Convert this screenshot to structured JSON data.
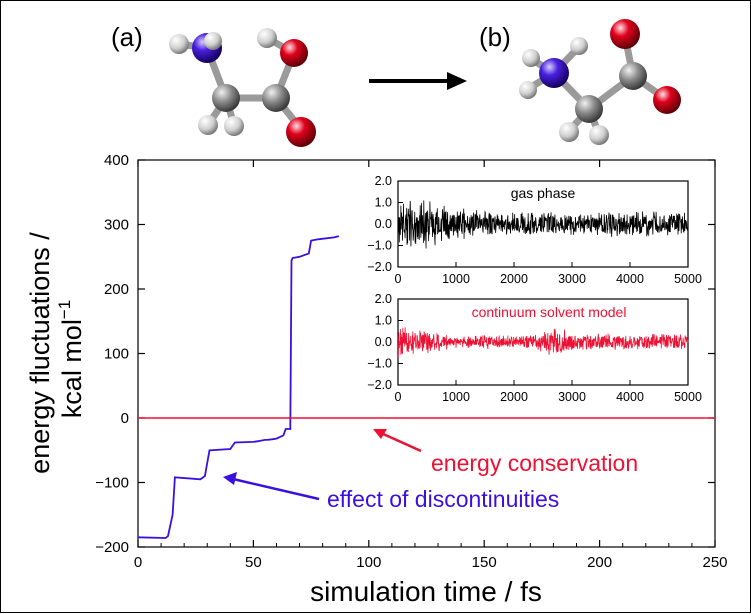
{
  "panel_labels": {
    "a": "(a)",
    "b": "(b)"
  },
  "colors": {
    "hydrogen": "#d8d8d8",
    "carbon": "#8a8a8a",
    "nitrogen": "#3a10c8",
    "oxygen": "#d0001c",
    "blue_series": "#3a10e0",
    "red_series": "#ee1133",
    "gas_series": "#000000",
    "continuum_series": "#ee1133"
  },
  "annotations": {
    "energy_conservation": "energy conservation",
    "effect_of_discontinuities": "effect of discontinuities"
  },
  "chart_data": [
    {
      "type": "line",
      "xlabel": "simulation time / fs",
      "ylabel_line1": "energy fluctuations /",
      "ylabel_line2": "kcal mol",
      "ylabel_superscript": "−1",
      "xlim": [
        0,
        250
      ],
      "ylim": [
        -200,
        400
      ],
      "xticks": [
        0,
        50,
        100,
        150,
        200,
        250
      ],
      "yticks": [
        -200,
        -100,
        0,
        100,
        200,
        300,
        400
      ],
      "grid": false,
      "series": [
        {
          "color": "#3a10e0",
          "x": [
            0,
            12,
            13,
            15,
            16,
            27,
            29,
            30,
            31,
            40,
            42,
            50,
            52,
            55,
            56,
            58,
            60,
            63,
            64,
            66,
            66.5,
            67,
            70,
            74,
            75,
            78,
            85,
            87
          ],
          "y": [
            -185,
            -186,
            -183,
            -150,
            -92,
            -95,
            -90,
            -70,
            -50,
            -48,
            -38,
            -37,
            -36,
            -34,
            -34,
            -33,
            -32,
            -27,
            -17,
            -17,
            244,
            248,
            250,
            255,
            275,
            277,
            280,
            282
          ]
        },
        {
          "color": "#ee1133",
          "x": [
            0,
            250
          ],
          "y": [
            0,
            0
          ]
        }
      ]
    },
    {
      "type": "line",
      "title": "gas phase",
      "xlim": [
        0,
        5000
      ],
      "ylim": [
        -2,
        2
      ],
      "xticks": [
        0,
        1000,
        2000,
        3000,
        4000,
        5000
      ],
      "yticks": [
        "2.0",
        "1.0",
        "0.0",
        "−1.0",
        "−2.0"
      ],
      "series": [
        {
          "color": "#000000",
          "x_range": [
            0,
            5000
          ],
          "approx_amplitude": [
            [
              0,
              1.3
            ],
            [
              500,
              1.2
            ],
            [
              1000,
              0.8
            ],
            [
              1500,
              0.6
            ],
            [
              2000,
              0.55
            ],
            [
              2500,
              0.6
            ],
            [
              3000,
              0.55
            ],
            [
              3500,
              0.6
            ],
            [
              4000,
              0.65
            ],
            [
              4500,
              0.6
            ],
            [
              5000,
              0.6
            ]
          ]
        }
      ]
    },
    {
      "type": "line",
      "title": "continuum solvent model",
      "xlim": [
        0,
        5000
      ],
      "ylim": [
        -2,
        2
      ],
      "xticks": [
        0,
        1000,
        2000,
        3000,
        4000,
        5000
      ],
      "yticks": [
        "2.0",
        "1.0",
        "0.0",
        "−1.0",
        "−2.0"
      ],
      "series": [
        {
          "color": "#ee1133",
          "x_range": [
            0,
            5000
          ],
          "approx_amplitude": [
            [
              0,
              0.8
            ],
            [
              500,
              0.6
            ],
            [
              1000,
              0.3
            ],
            [
              1500,
              0.35
            ],
            [
              2000,
              0.3
            ],
            [
              2500,
              0.45
            ],
            [
              2700,
              0.9
            ],
            [
              3000,
              0.4
            ],
            [
              3500,
              0.45
            ],
            [
              4000,
              0.35
            ],
            [
              4500,
              0.45
            ],
            [
              5000,
              0.4
            ]
          ]
        }
      ]
    }
  ]
}
